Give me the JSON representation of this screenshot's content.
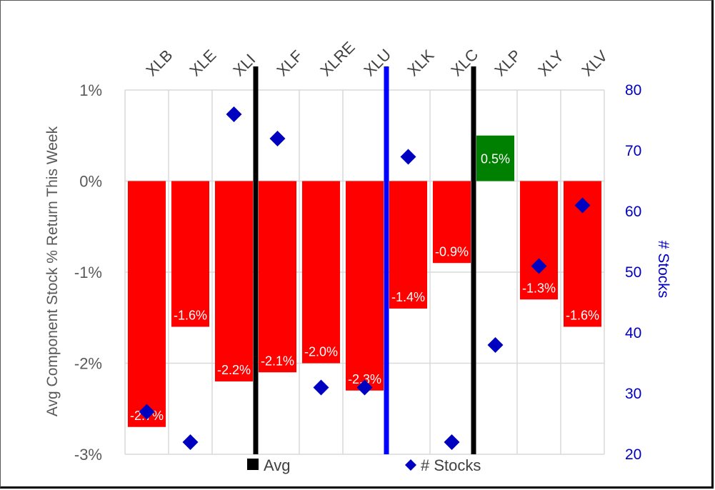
{
  "chart_data": {
    "type": "bar",
    "categories": [
      "XLB",
      "XLE",
      "XLI",
      "XLF",
      "XLRE",
      "XLU",
      "XLK",
      "XLC",
      "XLP",
      "XLY",
      "XLV"
    ],
    "series": [
      {
        "name": "",
        "values": [
          -2.7,
          -1.6,
          -2.2,
          -2.1,
          -2.0,
          -2.3,
          -1.4,
          -0.9,
          0.5,
          -1.3,
          -1.6
        ],
        "labels": [
          "-2.7%",
          "-1.6%",
          "-2.2%",
          "-2.1%",
          "-2.0%",
          "-2.3%",
          "-1.4%",
          "-0.9%",
          "0.5%",
          "-1.3%",
          "-1.6%"
        ],
        "axis": "left"
      },
      {
        "name": "# Stocks",
        "values": [
          27,
          22,
          76,
          72,
          31,
          31,
          69,
          22,
          38,
          51,
          61
        ],
        "axis": "right",
        "marker": "diamond"
      }
    ],
    "avg_lines": {
      "name": "Avg",
      "after_categories": [
        "XLI",
        "XLU",
        "XLC"
      ],
      "colors": [
        "#000000",
        "#0000ff",
        "#000000"
      ]
    },
    "ylabel": "Avg Component Stock % Return This Week",
    "y2label": "# Stocks",
    "ylim": [
      -3,
      1
    ],
    "y2lim": [
      20,
      80
    ],
    "yticks": [
      "1%",
      "0%",
      "-1%",
      "-2%",
      "-3%"
    ],
    "y2ticks": [
      "80",
      "70",
      "60",
      "50",
      "40",
      "30",
      "20"
    ],
    "legend": [
      "Avg",
      "# Stocks"
    ],
    "legend_position": "bottom",
    "grid": true,
    "colors": {
      "negative": "#ff0000",
      "positive": "#008000",
      "marker": "#0000c0",
      "grid": "#d9d9d9"
    }
  }
}
